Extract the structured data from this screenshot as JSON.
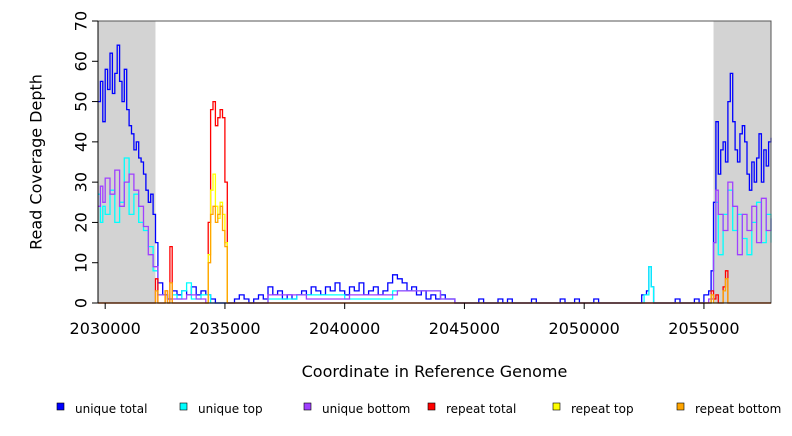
{
  "chart_data": {
    "type": "line",
    "title": "",
    "xlabel": "Coordinate in Reference Genome",
    "ylabel": "Read Coverage Depth",
    "xlim": [
      2029700,
      2057800
    ],
    "ylim": [
      0,
      70
    ],
    "x_ticks": [
      2030000,
      2035000,
      2040000,
      2045000,
      2050000,
      2055000
    ],
    "x_tick_labels": [
      "2030000",
      "2035000",
      "2040000",
      "2045000",
      "2050000",
      "2055000"
    ],
    "y_ticks": [
      0,
      10,
      20,
      30,
      40,
      50,
      60,
      70
    ],
    "y_tick_labels": [
      "0",
      "10",
      "20",
      "30",
      "40",
      "50",
      "60",
      "70"
    ],
    "shaded_regions": [
      [
        2029700,
        2032100
      ],
      [
        2055400,
        2057800
      ]
    ],
    "shade_color": "#d3d3d3",
    "grid": false,
    "legend_position": "bottom",
    "series": [
      {
        "name": "unique total",
        "color": "#0000ff",
        "points": [
          [
            2029700,
            50
          ],
          [
            2029800,
            55
          ],
          [
            2029900,
            45
          ],
          [
            2030000,
            58
          ],
          [
            2030100,
            53
          ],
          [
            2030200,
            62
          ],
          [
            2030300,
            52
          ],
          [
            2030400,
            57
          ],
          [
            2030500,
            64
          ],
          [
            2030600,
            55
          ],
          [
            2030700,
            50
          ],
          [
            2030800,
            58
          ],
          [
            2030900,
            48
          ],
          [
            2031000,
            44
          ],
          [
            2031100,
            42
          ],
          [
            2031200,
            38
          ],
          [
            2031300,
            40
          ],
          [
            2031400,
            36
          ],
          [
            2031500,
            35
          ],
          [
            2031600,
            32
          ],
          [
            2031700,
            28
          ],
          [
            2031800,
            25
          ],
          [
            2031900,
            27
          ],
          [
            2032000,
            22
          ],
          [
            2032100,
            15
          ],
          [
            2032200,
            5
          ],
          [
            2032400,
            2
          ],
          [
            2032600,
            1
          ],
          [
            2032800,
            3
          ],
          [
            2033000,
            2
          ],
          [
            2033200,
            3
          ],
          [
            2033400,
            2
          ],
          [
            2033600,
            4
          ],
          [
            2033800,
            2
          ],
          [
            2034000,
            3
          ],
          [
            2034200,
            2
          ],
          [
            2034400,
            1
          ],
          [
            2034600,
            0
          ],
          [
            2035200,
            0
          ],
          [
            2035400,
            1
          ],
          [
            2035600,
            2
          ],
          [
            2035800,
            1
          ],
          [
            2036000,
            0
          ],
          [
            2036200,
            1
          ],
          [
            2036400,
            2
          ],
          [
            2036600,
            1
          ],
          [
            2036800,
            4
          ],
          [
            2037000,
            2
          ],
          [
            2037200,
            3
          ],
          [
            2037400,
            1
          ],
          [
            2037600,
            2
          ],
          [
            2037800,
            1
          ],
          [
            2038000,
            2
          ],
          [
            2038200,
            3
          ],
          [
            2038400,
            2
          ],
          [
            2038600,
            4
          ],
          [
            2038800,
            3
          ],
          [
            2039000,
            2
          ],
          [
            2039200,
            4
          ],
          [
            2039400,
            3
          ],
          [
            2039600,
            5
          ],
          [
            2039800,
            3
          ],
          [
            2040000,
            2
          ],
          [
            2040200,
            4
          ],
          [
            2040400,
            3
          ],
          [
            2040600,
            5
          ],
          [
            2040800,
            2
          ],
          [
            2041000,
            3
          ],
          [
            2041200,
            4
          ],
          [
            2041400,
            2
          ],
          [
            2041600,
            3
          ],
          [
            2041800,
            5
          ],
          [
            2042000,
            7
          ],
          [
            2042200,
            6
          ],
          [
            2042400,
            5
          ],
          [
            2042600,
            3
          ],
          [
            2042800,
            4
          ],
          [
            2043000,
            2
          ],
          [
            2043200,
            3
          ],
          [
            2043400,
            1
          ],
          [
            2043600,
            2
          ],
          [
            2043800,
            1
          ],
          [
            2044000,
            2
          ],
          [
            2044200,
            1
          ],
          [
            2044400,
            1
          ],
          [
            2044600,
            0
          ],
          [
            2045400,
            0
          ],
          [
            2045600,
            1
          ],
          [
            2045800,
            0
          ],
          [
            2046400,
            1
          ],
          [
            2046600,
            0
          ],
          [
            2046800,
            1
          ],
          [
            2047000,
            0
          ],
          [
            2047800,
            1
          ],
          [
            2048000,
            0
          ],
          [
            2049000,
            1
          ],
          [
            2049200,
            0
          ],
          [
            2049600,
            1
          ],
          [
            2049800,
            0
          ],
          [
            2050400,
            1
          ],
          [
            2050600,
            0
          ],
          [
            2052300,
            0
          ],
          [
            2052400,
            2
          ],
          [
            2052600,
            3
          ],
          [
            2052700,
            9
          ],
          [
            2052800,
            4
          ],
          [
            2052900,
            0
          ],
          [
            2053600,
            0
          ],
          [
            2053800,
            1
          ],
          [
            2054000,
            0
          ],
          [
            2054600,
            1
          ],
          [
            2054800,
            0
          ],
          [
            2055000,
            2
          ],
          [
            2055200,
            3
          ],
          [
            2055300,
            8
          ],
          [
            2055400,
            25
          ],
          [
            2055500,
            45
          ],
          [
            2055600,
            32
          ],
          [
            2055700,
            38
          ],
          [
            2055800,
            40
          ],
          [
            2055900,
            35
          ],
          [
            2056000,
            50
          ],
          [
            2056100,
            57
          ],
          [
            2056200,
            45
          ],
          [
            2056300,
            38
          ],
          [
            2056400,
            35
          ],
          [
            2056500,
            42
          ],
          [
            2056600,
            44
          ],
          [
            2056700,
            40
          ],
          [
            2056800,
            32
          ],
          [
            2056900,
            28
          ],
          [
            2057000,
            35
          ],
          [
            2057100,
            30
          ],
          [
            2057200,
            36
          ],
          [
            2057300,
            42
          ],
          [
            2057400,
            30
          ],
          [
            2057500,
            38
          ],
          [
            2057600,
            34
          ],
          [
            2057700,
            40
          ],
          [
            2057800,
            41
          ]
        ]
      },
      {
        "name": "unique top",
        "color": "#00ffff",
        "points": [
          [
            2029700,
            27
          ],
          [
            2029800,
            20
          ],
          [
            2029900,
            24
          ],
          [
            2030000,
            22
          ],
          [
            2030200,
            28
          ],
          [
            2030400,
            20
          ],
          [
            2030600,
            25
          ],
          [
            2030800,
            36
          ],
          [
            2031000,
            22
          ],
          [
            2031200,
            27
          ],
          [
            2031400,
            20
          ],
          [
            2031600,
            18
          ],
          [
            2031800,
            14
          ],
          [
            2032000,
            8
          ],
          [
            2032200,
            2
          ],
          [
            2032600,
            1
          ],
          [
            2032800,
            2
          ],
          [
            2033000,
            1
          ],
          [
            2033200,
            3
          ],
          [
            2033400,
            5
          ],
          [
            2033600,
            1
          ],
          [
            2034000,
            2
          ],
          [
            2034400,
            0
          ],
          [
            2036800,
            1
          ],
          [
            2038000,
            2
          ],
          [
            2040000,
            1
          ],
          [
            2042000,
            3
          ],
          [
            2044000,
            1
          ],
          [
            2044600,
            0
          ],
          [
            2052300,
            0
          ],
          [
            2052500,
            2
          ],
          [
            2052700,
            9
          ],
          [
            2052800,
            4
          ],
          [
            2052900,
            0
          ],
          [
            2055300,
            3
          ],
          [
            2055400,
            15
          ],
          [
            2055500,
            25
          ],
          [
            2055600,
            12
          ],
          [
            2055800,
            22
          ],
          [
            2056000,
            28
          ],
          [
            2056200,
            18
          ],
          [
            2056400,
            22
          ],
          [
            2056600,
            16
          ],
          [
            2056800,
            12
          ],
          [
            2057000,
            20
          ],
          [
            2057200,
            25
          ],
          [
            2057400,
            15
          ],
          [
            2057600,
            22
          ],
          [
            2057800,
            15
          ]
        ]
      },
      {
        "name": "unique bottom",
        "color": "#a040ff",
        "points": [
          [
            2029700,
            24
          ],
          [
            2029800,
            29
          ],
          [
            2029900,
            25
          ],
          [
            2030000,
            31
          ],
          [
            2030200,
            27
          ],
          [
            2030400,
            33
          ],
          [
            2030600,
            24
          ],
          [
            2030800,
            30
          ],
          [
            2031000,
            32
          ],
          [
            2031200,
            28
          ],
          [
            2031400,
            24
          ],
          [
            2031600,
            19
          ],
          [
            2031800,
            12
          ],
          [
            2032000,
            9
          ],
          [
            2032200,
            2
          ],
          [
            2032600,
            1
          ],
          [
            2033000,
            1
          ],
          [
            2033400,
            2
          ],
          [
            2033800,
            1
          ],
          [
            2034200,
            0
          ],
          [
            2036800,
            2
          ],
          [
            2038400,
            1
          ],
          [
            2040200,
            2
          ],
          [
            2042200,
            3
          ],
          [
            2044000,
            1
          ],
          [
            2044600,
            0
          ],
          [
            2055200,
            1
          ],
          [
            2055400,
            15
          ],
          [
            2055500,
            28
          ],
          [
            2055600,
            22
          ],
          [
            2055800,
            18
          ],
          [
            2056000,
            30
          ],
          [
            2056200,
            24
          ],
          [
            2056400,
            12
          ],
          [
            2056600,
            22
          ],
          [
            2056800,
            18
          ],
          [
            2057000,
            24
          ],
          [
            2057200,
            15
          ],
          [
            2057400,
            26
          ],
          [
            2057600,
            18
          ],
          [
            2057800,
            21
          ]
        ]
      },
      {
        "name": "repeat total",
        "color": "#ff0000",
        "points": [
          [
            2029700,
            0
          ],
          [
            2032000,
            0
          ],
          [
            2032100,
            6
          ],
          [
            2032200,
            0
          ],
          [
            2032400,
            0
          ],
          [
            2032500,
            3
          ],
          [
            2032600,
            0
          ],
          [
            2032700,
            14
          ],
          [
            2032800,
            0
          ],
          [
            2034200,
            0
          ],
          [
            2034300,
            20
          ],
          [
            2034400,
            48
          ],
          [
            2034500,
            50
          ],
          [
            2034600,
            44
          ],
          [
            2034700,
            46
          ],
          [
            2034800,
            48
          ],
          [
            2034900,
            46
          ],
          [
            2035000,
            30
          ],
          [
            2035100,
            0
          ],
          [
            2055200,
            0
          ],
          [
            2055300,
            3
          ],
          [
            2055400,
            1
          ],
          [
            2055500,
            2
          ],
          [
            2055600,
            0
          ],
          [
            2055800,
            4
          ],
          [
            2055900,
            8
          ],
          [
            2056000,
            0
          ],
          [
            2057800,
            0
          ]
        ]
      },
      {
        "name": "repeat top",
        "color": "#ffff00",
        "points": [
          [
            2034200,
            0
          ],
          [
            2034300,
            12
          ],
          [
            2034400,
            28
          ],
          [
            2034500,
            32
          ],
          [
            2034600,
            24
          ],
          [
            2034700,
            21
          ],
          [
            2034800,
            25
          ],
          [
            2034900,
            22
          ],
          [
            2035000,
            15
          ],
          [
            2035100,
            0
          ]
        ]
      },
      {
        "name": "repeat bottom",
        "color": "#ffa500",
        "points": [
          [
            2029700,
            0
          ],
          [
            2032000,
            0
          ],
          [
            2032100,
            3
          ],
          [
            2032200,
            0
          ],
          [
            2032400,
            0
          ],
          [
            2032500,
            3
          ],
          [
            2032600,
            0
          ],
          [
            2032700,
            5
          ],
          [
            2032800,
            0
          ],
          [
            2034200,
            0
          ],
          [
            2034300,
            10
          ],
          [
            2034400,
            22
          ],
          [
            2034500,
            24
          ],
          [
            2034600,
            20
          ],
          [
            2034700,
            22
          ],
          [
            2034800,
            24
          ],
          [
            2034900,
            18
          ],
          [
            2035000,
            14
          ],
          [
            2035100,
            0
          ],
          [
            2055200,
            0
          ],
          [
            2055300,
            2
          ],
          [
            2055400,
            0
          ],
          [
            2055800,
            3
          ],
          [
            2055900,
            6
          ],
          [
            2056000,
            0
          ],
          [
            2057800,
            0
          ]
        ]
      }
    ]
  }
}
